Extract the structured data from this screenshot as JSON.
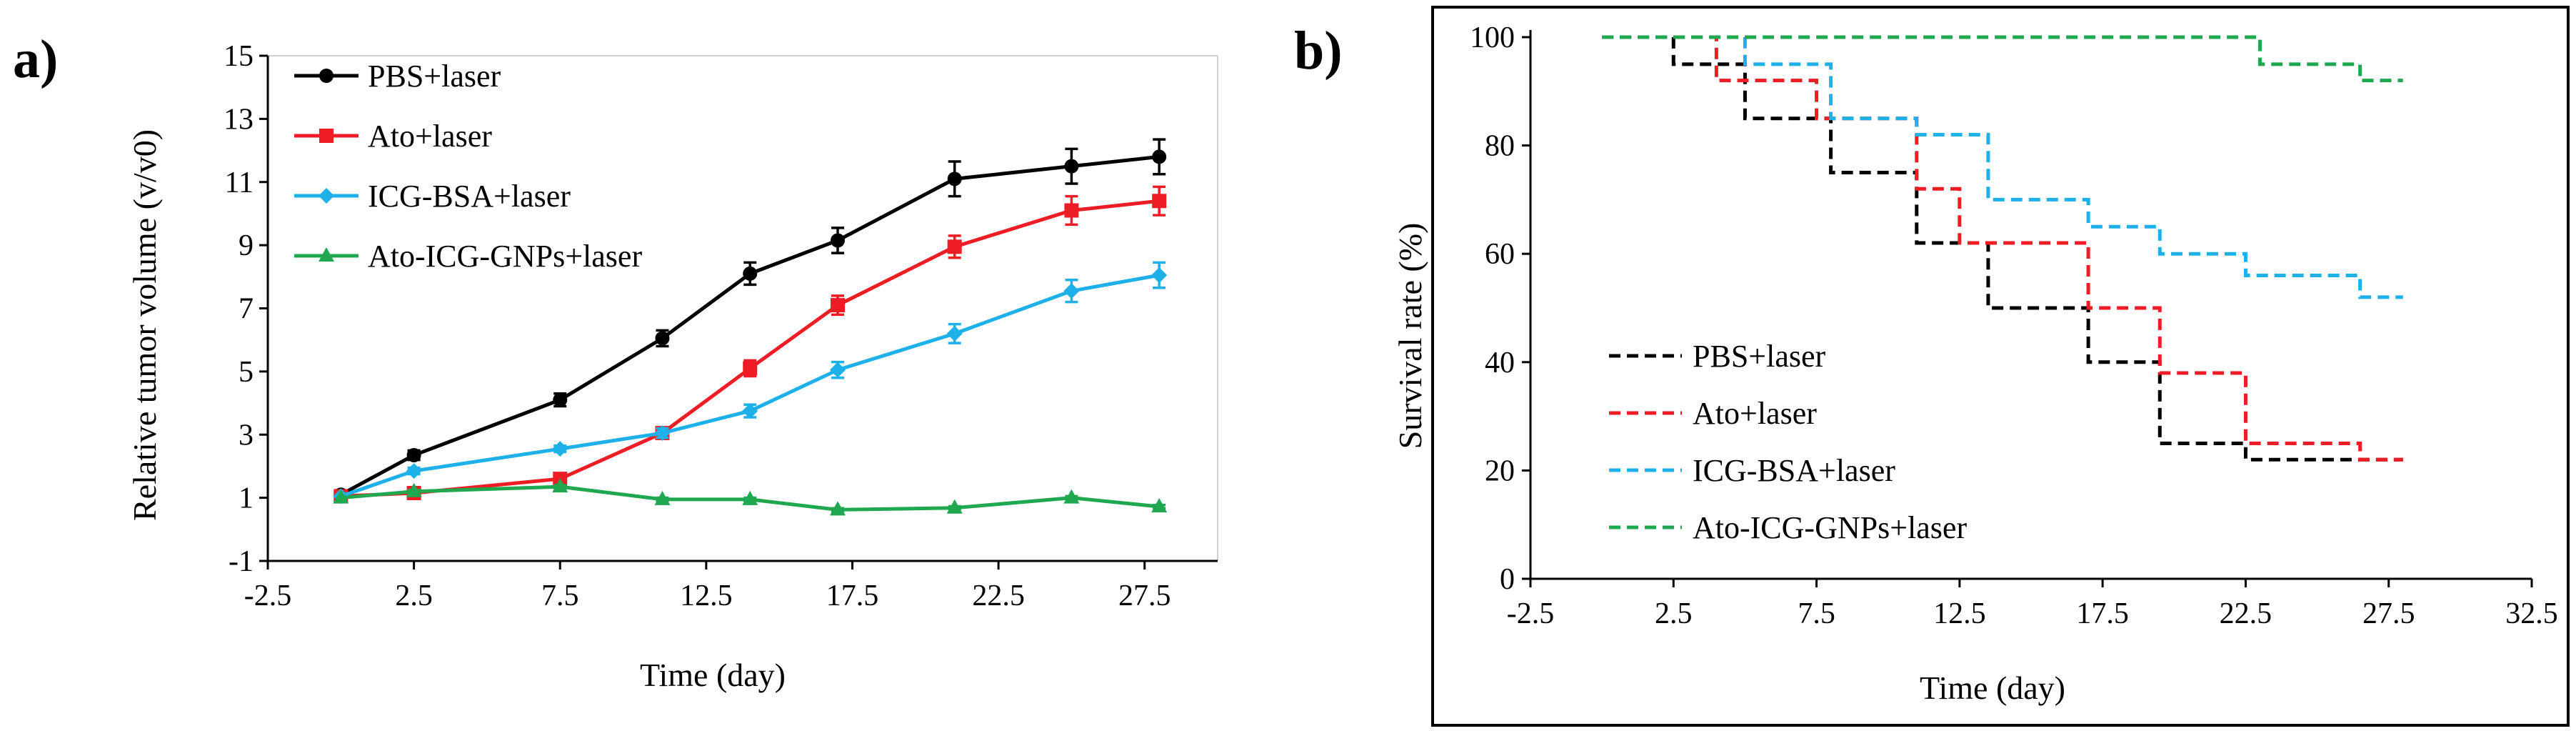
{
  "chart_data": [
    {
      "panel_label": "a)",
      "type": "line",
      "title": "",
      "xlabel": "Time (day)",
      "ylabel": "Relative tumor volume (v/v0)",
      "xlim": [
        -2.5,
        30
      ],
      "ylim": [
        -1,
        15
      ],
      "xticks": [
        "-2.5",
        "2.5",
        "7.5",
        "12.5",
        "17.5",
        "22.5",
        "27.5"
      ],
      "xtick_values": [
        -2.5,
        2.5,
        7.5,
        12.5,
        17.5,
        22.5,
        27.5
      ],
      "yticks": [
        "-1",
        "1",
        "3",
        "5",
        "7",
        "9",
        "11",
        "13",
        "15"
      ],
      "ytick_values": [
        -1,
        1,
        3,
        5,
        7,
        9,
        11,
        13,
        15
      ],
      "x": [
        0,
        2.5,
        7.5,
        11,
        14,
        17,
        21,
        25,
        28
      ],
      "legend_position": "top-left",
      "series": [
        {
          "name": "PBS+laser",
          "color": "#000000",
          "marker": "circle",
          "values": [
            1.1,
            2.35,
            4.1,
            6.05,
            8.1,
            9.15,
            11.1,
            11.5,
            11.8
          ],
          "errors": [
            0,
            0.15,
            0.2,
            0.25,
            0.35,
            0.4,
            0.55,
            0.55,
            0.55
          ]
        },
        {
          "name": "Ato+laser",
          "color": "#ee1c24",
          "marker": "square",
          "values": [
            1.05,
            1.15,
            1.6,
            3.05,
            5.1,
            7.1,
            8.95,
            10.1,
            10.4
          ],
          "errors": [
            0,
            0.1,
            0.1,
            0.15,
            0.25,
            0.3,
            0.35,
            0.45,
            0.45
          ]
        },
        {
          "name": "ICG-BSA+laser",
          "color": "#1eb0e8",
          "marker": "diamond",
          "values": [
            1.05,
            1.85,
            2.55,
            3.05,
            3.75,
            5.05,
            6.2,
            7.55,
            8.05
          ],
          "errors": [
            0,
            0.1,
            0.1,
            0.15,
            0.2,
            0.25,
            0.3,
            0.35,
            0.4
          ]
        },
        {
          "name": "Ato-ICG-GNPs+laser",
          "color": "#1fa84f",
          "marker": "triangle",
          "values": [
            1.0,
            1.2,
            1.35,
            0.95,
            0.95,
            0.62,
            0.68,
            1.0,
            0.72
          ],
          "errors": [
            0,
            0.05,
            0.05,
            0.05,
            0.05,
            0.05,
            0.05,
            0.05,
            0.05
          ]
        }
      ]
    },
    {
      "panel_label": "b)",
      "type": "line",
      "title": "",
      "xlabel": "Time (day)",
      "ylabel": "Survival rate (%)",
      "xlim": [
        -2.5,
        32.5
      ],
      "ylim": [
        0,
        100
      ],
      "xticks": [
        "-2.5",
        "2.5",
        "7.5",
        "12.5",
        "17.5",
        "22.5",
        "27.5",
        "32.5"
      ],
      "xtick_values": [
        -2.5,
        2.5,
        7.5,
        12.5,
        17.5,
        22.5,
        27.5,
        32.5
      ],
      "yticks": [
        "0",
        "20",
        "40",
        "60",
        "80",
        "100"
      ],
      "ytick_values": [
        0,
        20,
        40,
        60,
        80,
        100
      ],
      "step": "post",
      "legend_position": "bottom-left",
      "series": [
        {
          "name": "PBS+laser",
          "color": "#000000",
          "x": [
            0,
            2.5,
            5,
            8,
            11,
            13.5,
            17,
            19.5,
            22.5,
            28
          ],
          "values": [
            100,
            95,
            85,
            75,
            62,
            50,
            40,
            25,
            22,
            22
          ]
        },
        {
          "name": "Ato+laser",
          "color": "#ee1c24",
          "x": [
            0,
            4,
            5.5,
            7.5,
            11,
            12.5,
            17,
            19.5,
            22.5,
            26.5,
            28
          ],
          "values": [
            100,
            92,
            92,
            85,
            72,
            62,
            50,
            38,
            25,
            22,
            22
          ]
        },
        {
          "name": "ICG-BSA+laser",
          "color": "#1eb0e8",
          "x": [
            0,
            5,
            8,
            11,
            13.5,
            17,
            19.5,
            22.5,
            26.5,
            28
          ],
          "values": [
            100,
            95,
            85,
            82,
            70,
            65,
            60,
            56,
            52,
            52
          ]
        },
        {
          "name": "Ato-ICG-GNPs+laser",
          "color": "#1fa84f",
          "x": [
            0,
            23,
            26.5,
            28
          ],
          "values": [
            100,
            95,
            92,
            92
          ]
        }
      ]
    }
  ]
}
